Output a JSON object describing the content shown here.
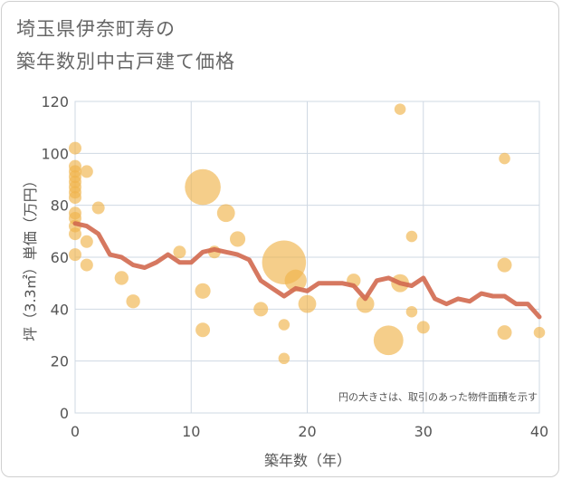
{
  "title_line1": "埼玉県伊奈町寿の",
  "title_line2": "築年数別中古戸建て価格",
  "chart_data": {
    "type": "scatter",
    "title": "埼玉県伊奈町寿の築年数別中古戸建て価格",
    "xlabel": "築年数（年）",
    "ylabel": "坪（3.3㎡）単価（万円）",
    "xlim": [
      0,
      40
    ],
    "ylim": [
      0,
      120
    ],
    "xticks": [
      0,
      10,
      20,
      30,
      40
    ],
    "yticks": [
      0,
      20,
      40,
      60,
      80,
      100,
      120
    ],
    "note": "円の大きさは、取引のあった物件面積を示す",
    "colors": {
      "bubble": "#f0b44c",
      "line": "#d2694f",
      "grid": "#cfd8e3"
    },
    "bubbles": [
      {
        "x": 0,
        "y": 102,
        "size": 1
      },
      {
        "x": 0,
        "y": 95,
        "size": 1
      },
      {
        "x": 0,
        "y": 93,
        "size": 1
      },
      {
        "x": 0,
        "y": 91,
        "size": 1
      },
      {
        "x": 0,
        "y": 89,
        "size": 1
      },
      {
        "x": 0,
        "y": 87,
        "size": 1
      },
      {
        "x": 0,
        "y": 85,
        "size": 1
      },
      {
        "x": 0,
        "y": 83,
        "size": 1
      },
      {
        "x": 0,
        "y": 77,
        "size": 1
      },
      {
        "x": 0,
        "y": 75,
        "size": 1
      },
      {
        "x": 0,
        "y": 72,
        "size": 1
      },
      {
        "x": 0,
        "y": 69,
        "size": 1
      },
      {
        "x": 0,
        "y": 61,
        "size": 1
      },
      {
        "x": 1,
        "y": 93,
        "size": 1
      },
      {
        "x": 1,
        "y": 66,
        "size": 1
      },
      {
        "x": 1,
        "y": 57,
        "size": 1
      },
      {
        "x": 2,
        "y": 79,
        "size": 1
      },
      {
        "x": 4,
        "y": 52,
        "size": 1.2
      },
      {
        "x": 5,
        "y": 43,
        "size": 1.2
      },
      {
        "x": 9,
        "y": 62,
        "size": 1
      },
      {
        "x": 11,
        "y": 87,
        "size": 8
      },
      {
        "x": 11,
        "y": 47,
        "size": 1.5
      },
      {
        "x": 11,
        "y": 32,
        "size": 1.3
      },
      {
        "x": 12,
        "y": 62,
        "size": 1
      },
      {
        "x": 13,
        "y": 77,
        "size": 2
      },
      {
        "x": 14,
        "y": 67,
        "size": 1.5
      },
      {
        "x": 16,
        "y": 40,
        "size": 1.3
      },
      {
        "x": 18,
        "y": 58,
        "size": 12
      },
      {
        "x": 18,
        "y": 34,
        "size": 0.8
      },
      {
        "x": 18,
        "y": 21,
        "size": 0.8
      },
      {
        "x": 19,
        "y": 51,
        "size": 3
      },
      {
        "x": 20,
        "y": 42,
        "size": 2
      },
      {
        "x": 24,
        "y": 51,
        "size": 1.2
      },
      {
        "x": 25,
        "y": 42,
        "size": 2
      },
      {
        "x": 27,
        "y": 28,
        "size": 5.5
      },
      {
        "x": 28,
        "y": 117,
        "size": 0.8
      },
      {
        "x": 28,
        "y": 50,
        "size": 2
      },
      {
        "x": 29,
        "y": 68,
        "size": 0.8
      },
      {
        "x": 29,
        "y": 39,
        "size": 0.8
      },
      {
        "x": 30,
        "y": 33,
        "size": 1
      },
      {
        "x": 37,
        "y": 98,
        "size": 0.8
      },
      {
        "x": 37,
        "y": 57,
        "size": 1.3
      },
      {
        "x": 37,
        "y": 31,
        "size": 1.3
      },
      {
        "x": 40,
        "y": 31,
        "size": 0.8
      }
    ],
    "trend": [
      {
        "x": 0,
        "y": 73
      },
      {
        "x": 1,
        "y": 72
      },
      {
        "x": 2,
        "y": 69
      },
      {
        "x": 3,
        "y": 61
      },
      {
        "x": 4,
        "y": 60
      },
      {
        "x": 5,
        "y": 57
      },
      {
        "x": 6,
        "y": 56
      },
      {
        "x": 7,
        "y": 58
      },
      {
        "x": 8,
        "y": 61
      },
      {
        "x": 9,
        "y": 58
      },
      {
        "x": 10,
        "y": 58
      },
      {
        "x": 11,
        "y": 62
      },
      {
        "x": 12,
        "y": 63
      },
      {
        "x": 13,
        "y": 62
      },
      {
        "x": 14,
        "y": 61
      },
      {
        "x": 15,
        "y": 59
      },
      {
        "x": 16,
        "y": 51
      },
      {
        "x": 17,
        "y": 48
      },
      {
        "x": 18,
        "y": 45
      },
      {
        "x": 19,
        "y": 48
      },
      {
        "x": 20,
        "y": 47
      },
      {
        "x": 21,
        "y": 50
      },
      {
        "x": 22,
        "y": 50
      },
      {
        "x": 23,
        "y": 50
      },
      {
        "x": 24,
        "y": 49
      },
      {
        "x": 25,
        "y": 44
      },
      {
        "x": 26,
        "y": 51
      },
      {
        "x": 27,
        "y": 52
      },
      {
        "x": 28,
        "y": 50
      },
      {
        "x": 29,
        "y": 49
      },
      {
        "x": 30,
        "y": 52
      },
      {
        "x": 31,
        "y": 44
      },
      {
        "x": 32,
        "y": 42
      },
      {
        "x": 33,
        "y": 44
      },
      {
        "x": 34,
        "y": 43
      },
      {
        "x": 35,
        "y": 46
      },
      {
        "x": 36,
        "y": 45
      },
      {
        "x": 37,
        "y": 45
      },
      {
        "x": 38,
        "y": 42
      },
      {
        "x": 39,
        "y": 42
      },
      {
        "x": 40,
        "y": 37
      }
    ]
  }
}
